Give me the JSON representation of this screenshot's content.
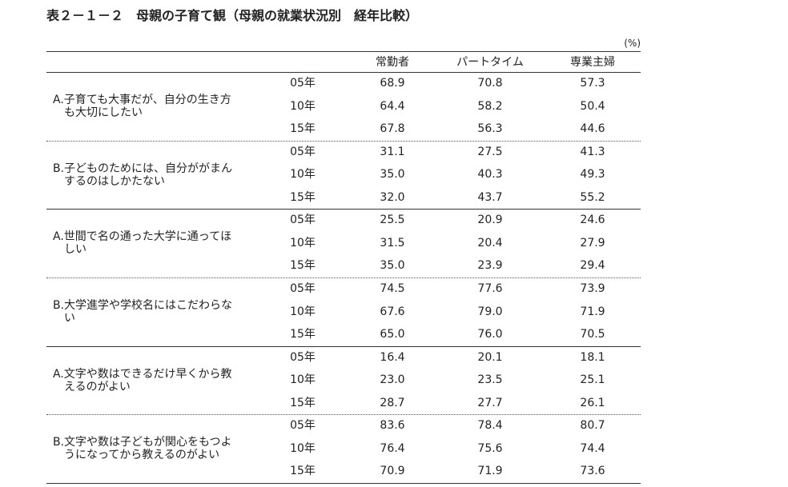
{
  "title": "表２－１－２　母親の子育て観（母親の就業状況別　経年比較）",
  "unit": "(%)",
  "headers": [
    "常勤者",
    "パートタイム",
    "専業主婦"
  ],
  "groups": [
    {
      "label": [
        "A.子育ても大事だが、自分の生き方",
        "も大切にしたい"
      ],
      "rows": [
        {
          "year": "05年",
          "values": [
            "68.9",
            "70.8",
            "57.3"
          ]
        },
        {
          "year": "10年",
          "values": [
            "64.4",
            "58.2",
            "50.4"
          ]
        },
        {
          "year": "15年",
          "values": [
            "67.8",
            "56.3",
            "44.6"
          ]
        }
      ]
    },
    {
      "label": [
        "B.子どものためには、自分ががまん",
        "するのはしかたない"
      ],
      "rows": [
        {
          "year": "05年",
          "values": [
            "31.1",
            "27.5",
            "41.3"
          ]
        },
        {
          "year": "10年",
          "values": [
            "35.0",
            "40.3",
            "49.3"
          ]
        },
        {
          "year": "15年",
          "values": [
            "32.0",
            "43.7",
            "55.2"
          ]
        }
      ]
    },
    {
      "label": [
        "A.世間で名の通った大学に通ってほ",
        "しい"
      ],
      "rows": [
        {
          "year": "05年",
          "values": [
            "25.5",
            "20.9",
            "24.6"
          ]
        },
        {
          "year": "10年",
          "values": [
            "31.5",
            "20.4",
            "27.9"
          ]
        },
        {
          "year": "15年",
          "values": [
            "35.0",
            "23.9",
            "29.4"
          ]
        }
      ]
    },
    {
      "label": [
        "B.大学進学や学校名にはこだわらな",
        "い"
      ],
      "rows": [
        {
          "year": "05年",
          "values": [
            "74.5",
            "77.6",
            "73.9"
          ]
        },
        {
          "year": "10年",
          "values": [
            "67.6",
            "79.0",
            "71.9"
          ]
        },
        {
          "year": "15年",
          "values": [
            "65.0",
            "76.0",
            "70.5"
          ]
        }
      ]
    },
    {
      "label": [
        "A.文字や数はできるだけ早くから教",
        "えるのがよい"
      ],
      "rows": [
        {
          "year": "05年",
          "values": [
            "16.4",
            "20.1",
            "18.1"
          ]
        },
        {
          "year": "10年",
          "values": [
            "23.0",
            "23.5",
            "25.1"
          ]
        },
        {
          "year": "15年",
          "values": [
            "28.7",
            "27.7",
            "26.1"
          ]
        }
      ]
    },
    {
      "label": [
        "B.文字や数は子どもが関心をもつよ",
        "うになってから教えるのがよい"
      ],
      "rows": [
        {
          "year": "05年",
          "values": [
            "83.6",
            "78.4",
            "80.7"
          ]
        },
        {
          "year": "10年",
          "values": [
            "76.4",
            "75.6",
            "74.4"
          ]
        },
        {
          "year": "15年",
          "values": [
            "70.9",
            "71.9",
            "73.6"
          ]
        }
      ]
    }
  ]
}
